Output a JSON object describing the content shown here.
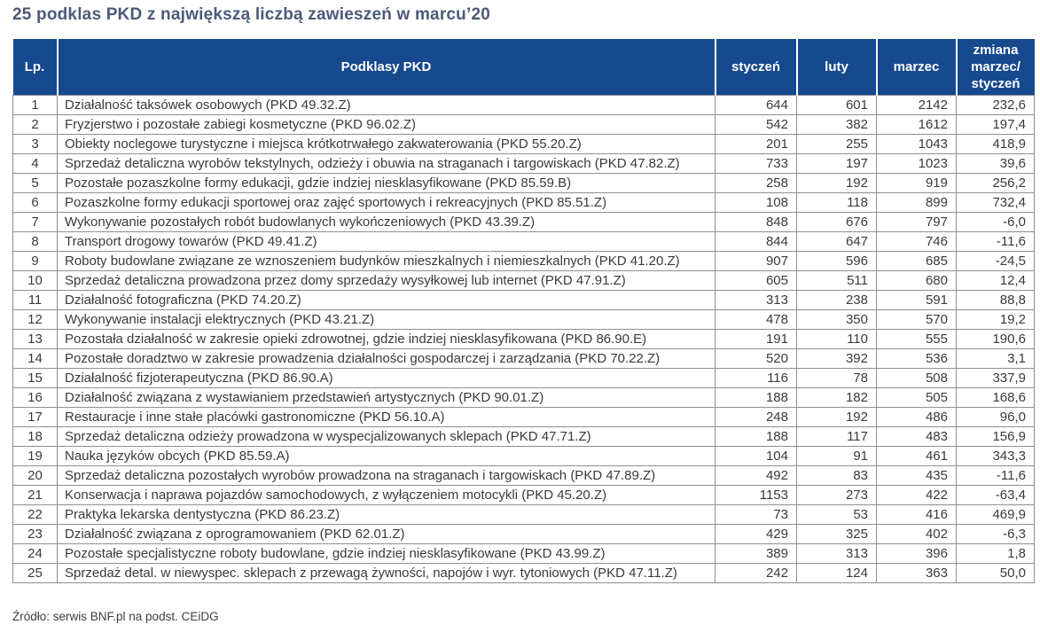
{
  "title": "25 podklas PKD z największą liczbą zawieszeń w marcu’20",
  "source": "Źródło: serwis BNF.pl na podst. CEiDG",
  "colors": {
    "header_background": "#17498e",
    "header_text": "#ffffff",
    "title_text": "#4c5a78",
    "body_text": "#3a3a3a",
    "grid_border": "#8f8f8f"
  },
  "chart_data": {
    "type": "table",
    "title": "25 podklas PKD z największą liczbą zawieszeń w marcu’20",
    "columns": [
      "Lp.",
      "Podklasy PKD",
      "styczeń",
      "luty",
      "marzec",
      "zmiana marzec/ styczeń"
    ],
    "rows": [
      [
        "1",
        "Działalność taksówek osobowych (PKD 49.32.Z)",
        "644",
        "601",
        "2142",
        "232,6"
      ],
      [
        "2",
        "Fryzjerstwo i pozostałe zabiegi kosmetyczne (PKD 96.02.Z)",
        "542",
        "382",
        "1612",
        "197,4"
      ],
      [
        "3",
        "Obiekty noclegowe turystyczne i miejsca krótkotrwałego zakwaterowania  (PKD 55.20.Z)",
        "201",
        "255",
        "1043",
        "418,9"
      ],
      [
        "4",
        "Sprzedaż detaliczna wyrobów tekstylnych, odzieży i obuwia na straganach i targowiskach (PKD 47.82.Z)",
        "733",
        "197",
        "1023",
        "39,6"
      ],
      [
        "5",
        "Pozostałe pozaszkolne formy edukacji, gdzie indziej niesklasyfikowane (PKD 85.59.B)",
        "258",
        "192",
        "919",
        "256,2"
      ],
      [
        "6",
        "Pozaszkolne formy edukacji sportowej oraz zajęć sportowych i rekreacyjnych (PKD 85.51.Z)",
        "108",
        "118",
        "899",
        "732,4"
      ],
      [
        "7",
        "Wykonywanie pozostałych robót budowlanych wykończeniowych (PKD 43.39.Z)",
        "848",
        "676",
        "797",
        "-6,0"
      ],
      [
        "8",
        "Transport drogowy towarów (PKD 49.41.Z)",
        "844",
        "647",
        "746",
        "-11,6"
      ],
      [
        "9",
        "Roboty budowlane związane ze wznoszeniem budynków mieszkalnych i niemieszkalnych (PKD 41.20.Z)",
        "907",
        "596",
        "685",
        "-24,5"
      ],
      [
        "10",
        "Sprzedaż detaliczna prowadzona przez domy sprzedaży wysyłkowej lub internet (PKD 47.91.Z)",
        "605",
        "511",
        "680",
        "12,4"
      ],
      [
        "11",
        "Działalność fotograficzna (PKD 74.20.Z)",
        "313",
        "238",
        "591",
        "88,8"
      ],
      [
        "12",
        "Wykonywanie instalacji elektrycznych (PKD 43.21.Z)",
        "478",
        "350",
        "570",
        "19,2"
      ],
      [
        "13",
        "Pozostała działalność w zakresie opieki zdrowotnej, gdzie indziej niesklasyfikowana (PKD 86.90.E)",
        "191",
        "110",
        "555",
        "190,6"
      ],
      [
        "14",
        "Pozostałe doradztwo w zakresie prowadzenia działalności gospodarczej i zarządzania (PKD 70.22.Z)",
        "520",
        "392",
        "536",
        "3,1"
      ],
      [
        "15",
        "Działalność fizjoterapeutyczna (PKD 86.90.A)",
        "116",
        "78",
        "508",
        "337,9"
      ],
      [
        "16",
        "Działalność związana z wystawianiem przedstawień artystycznych (PKD 90.01.Z)",
        "188",
        "182",
        "505",
        "168,6"
      ],
      [
        "17",
        "Restauracje i inne stałe placówki gastronomiczne (PKD 56.10.A)",
        "248",
        "192",
        "486",
        "96,0"
      ],
      [
        "18",
        "Sprzedaż detaliczna odzieży prowadzona w wyspecjalizowanych sklepach (PKD 47.71.Z)",
        "188",
        "117",
        "483",
        "156,9"
      ],
      [
        "19",
        "Nauka języków obcych (PKD 85.59.A)",
        "104",
        "91",
        "461",
        "343,3"
      ],
      [
        "20",
        "Sprzedaż detaliczna pozostałych wyrobów prowadzona na straganach i targowiskach (PKD 47.89.Z)",
        "492",
        "83",
        "435",
        "-11,6"
      ],
      [
        "21",
        "Konserwacja i naprawa pojazdów samochodowych, z wyłączeniem motocykli (PKD 45.20.Z)",
        "1153",
        "273",
        "422",
        "-63,4"
      ],
      [
        "22",
        "Praktyka lekarska dentystyczna (PKD 86.23.Z)",
        "73",
        "53",
        "416",
        "469,9"
      ],
      [
        "23",
        "Działalność związana z oprogramowaniem (PKD 62.01.Z)",
        "429",
        "325",
        "402",
        "-6,3"
      ],
      [
        "24",
        "Pozostałe specjalistyczne roboty budowlane, gdzie indziej niesklasyfikowane (PKD 43.99.Z)",
        "389",
        "313",
        "396",
        "1,8"
      ],
      [
        "25",
        "Sprzedaż detal. w niewyspec. sklepach z przewagą żywności, napojów i wyr. tytoniowych (PKD 47.11.Z)",
        "242",
        "124",
        "363",
        "50,0"
      ]
    ]
  }
}
